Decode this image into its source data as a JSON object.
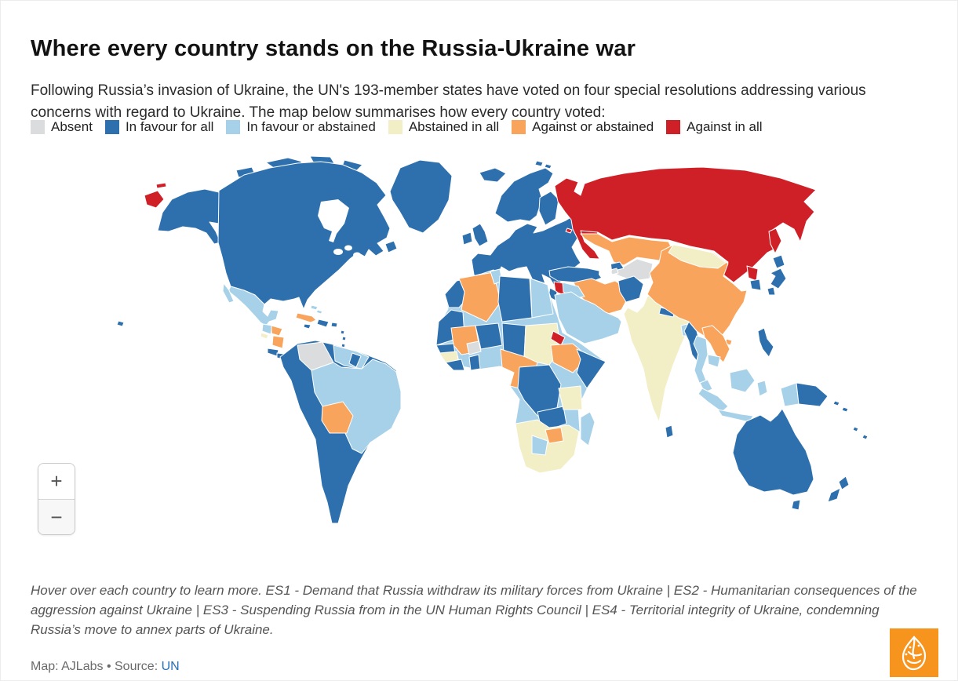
{
  "header": {
    "title": "Where every country stands on the Russia-Ukraine war",
    "intro": "Following Russia’s invasion of Ukraine, the UN's 193-member states have voted on four special resolutions addressing various concerns with regard to Ukraine. The map below summarises how every country voted:"
  },
  "legend": {
    "items": [
      {
        "key": "absent",
        "label": "Absent",
        "color": "#dadcde"
      },
      {
        "key": "in_favour_all",
        "label": "In favour for all",
        "color": "#2d70ad"
      },
      {
        "key": "in_favour_or_abstained",
        "label": "In favour or abstained",
        "color": "#a7d1e8"
      },
      {
        "key": "abstained_all",
        "label": "Abstained in all",
        "color": "#f2eec6"
      },
      {
        "key": "against_or_abstained",
        "label": "Against or abstained",
        "color": "#f9a45c"
      },
      {
        "key": "against_all",
        "label": "Against in all",
        "color": "#d02027"
      }
    ]
  },
  "map": {
    "controls": {
      "zoom_in": "+",
      "zoom_out": "−"
    },
    "regions": {
      "arctic-islands": "in_favour_all",
      "alaska": "in_favour_all",
      "north-america": "in_favour_all",
      "newfoundland": "in_favour_all",
      "greenland": "in_favour_all",
      "hawaii": "in_favour_all",
      "chukotka-islands": "against_all",
      "mexico": "in_favour_or_abstained",
      "baja": "in_favour_or_abstained",
      "guatemala": "in_favour_or_abstained",
      "el-salvador": "abstained_all",
      "honduras": "against_or_abstained",
      "nicaragua": "against_or_abstained",
      "costa-rica": "in_favour_all",
      "panama": "in_favour_all",
      "cuba": "against_or_abstained",
      "jamaica": "in_favour_all",
      "hispaniola": "in_favour_all",
      "puerto-rico": "in_favour_all",
      "bahamas": "in_favour_or_abstained",
      "lesser-antilles": "in_favour_all",
      "south-america": "in_favour_all",
      "venezuela": "absent",
      "guyanas": "in_favour_or_abstained",
      "suriname": "in_favour_all",
      "brazil": "in_favour_or_abstained",
      "bolivia": "against_or_abstained",
      "iceland": "in_favour_all",
      "svalbard": "in_favour_all",
      "ireland": "in_favour_all",
      "uk": "in_favour_all",
      "europe": "in_favour_all",
      "scandinavia": "in_favour_all",
      "finland": "in_favour_all",
      "belarus": "against_all",
      "kaliningrad": "against_all",
      "turkey": "in_favour_all",
      "syria": "against_all",
      "levant": "in_favour_all",
      "georgia-azerbaijan": "in_favour_all",
      "armenia": "absent",
      "russia": "against_all",
      "sakhalin": "against_all",
      "kazakhstan": "against_or_abstained",
      "central-asia": "absent",
      "iran": "against_or_abstained",
      "iraq": "in_favour_or_abstained",
      "arabia": "in_favour_or_abstained",
      "afghanistan": "in_favour_all",
      "india-pakistan": "abstained_all",
      "nepal": "in_favour_all",
      "bangladesh": "in_favour_or_abstained",
      "sri-lanka": "in_favour_all",
      "china": "against_or_abstained",
      "mongolia": "abstained_all",
      "hainan": "against_or_abstained",
      "north-korea": "against_all",
      "south-korea": "in_favour_all",
      "japan": "in_favour_all",
      "myanmar": "in_favour_all",
      "thailand": "in_favour_or_abstained",
      "laos-vietnam": "against_or_abstained",
      "cambodia": "in_favour_or_abstained",
      "malay-peninsula": "in_favour_or_abstained",
      "borneo": "in_favour_or_abstained",
      "sumatra": "in_favour_or_abstained",
      "java": "in_favour_or_abstained",
      "sulawesi": "in_favour_or_abstained",
      "west-new-guinea": "in_favour_or_abstained",
      "papua-new-guinea": "in_favour_all",
      "solomons": "in_favour_all",
      "philippines": "in_favour_all",
      "australia": "in_favour_all",
      "tasmania": "in_favour_all",
      "new-zealand": "in_favour_all",
      "pacific-islands": "in_favour_all",
      "africa-base": "in_favour_or_abstained",
      "morocco": "in_favour_all",
      "algeria": "against_or_abstained",
      "tunisia": "in_favour_or_abstained",
      "libya": "in_favour_all",
      "egypt": "in_favour_or_abstained",
      "mauritania": "in_favour_all",
      "mali": "against_or_abstained",
      "burkina-faso": "absent",
      "niger": "in_favour_all",
      "chad": "in_favour_all",
      "sudan": "abstained_all",
      "eritrea": "against_all",
      "ethiopia": "against_or_abstained",
      "somalia": "in_favour_all",
      "senegal": "in_favour_all",
      "guinea": "abstained_all",
      "sierra-leone-liberia": "in_favour_all",
      "ghana": "in_favour_all",
      "cameroon-car-congo": "against_or_abstained",
      "drc": "in_favour_all",
      "zambia": "in_favour_all",
      "tanzania": "abstained_all",
      "southern-africa": "abstained_all",
      "zimbabwe": "against_or_abstained",
      "botswana": "in_favour_or_abstained",
      "madagascar": "in_favour_or_abstained"
    }
  },
  "footer": {
    "note": "Hover over each country to learn more. ES1 - Demand that Russia withdraw its military forces from Ukraine | ES2 - Humanitarian consequences of the aggression against Ukraine | ES3 - Suspending Russia from in the UN Human Rights Council | ES4 - Territorial integrity of Ukraine, condemning Russia’s move to annex parts of Ukraine.",
    "credit_text": "Map: AJLabs • Source: ",
    "credit_link": "UN",
    "credit_link_color": "#2570b8",
    "logo_color": "#f7941e"
  }
}
